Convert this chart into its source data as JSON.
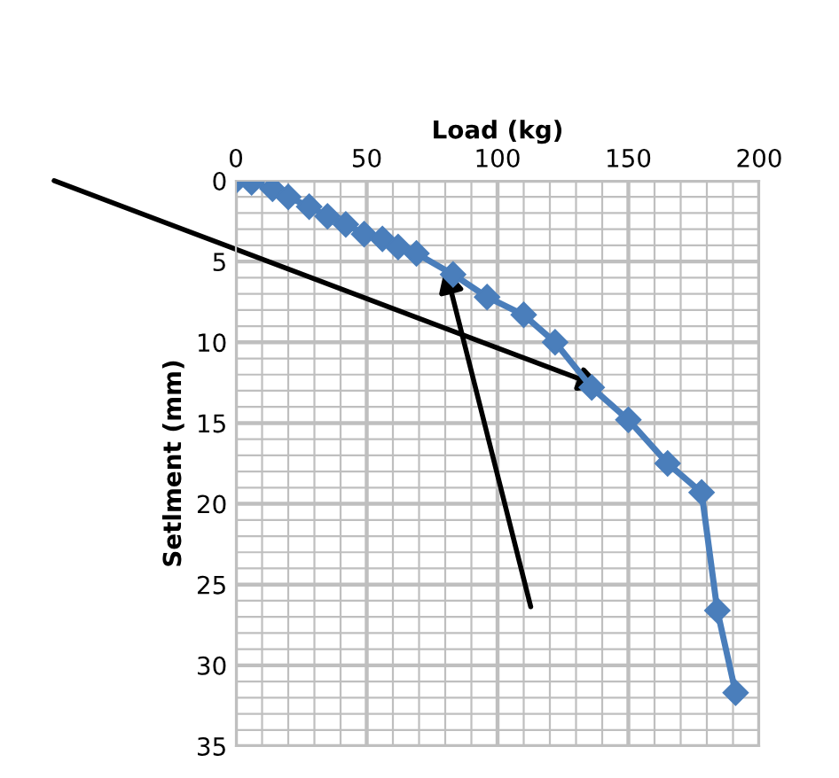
{
  "chart_data": {
    "type": "line",
    "xlabel": "Load (kg)",
    "ylabel": "Setlment (mm)",
    "x": [
      0,
      6,
      14,
      20,
      28,
      35,
      42,
      49,
      56,
      62,
      69,
      83,
      96,
      110,
      122,
      136,
      150,
      165,
      178,
      184,
      191
    ],
    "series": [
      {
        "color": "#4a7ebb",
        "values": [
          0,
          0.1,
          0.5,
          1.0,
          1.6,
          2.2,
          2.7,
          3.3,
          3.6,
          4.1,
          4.5,
          5.8,
          7.2,
          8.3,
          10.0,
          12.8,
          14.8,
          17.5,
          19.3,
          26.6,
          31.7
        ]
      }
    ],
    "xlim": [
      0,
      200
    ],
    "xticks": [
      0,
      50,
      100,
      150,
      200
    ],
    "ylim": [
      35,
      0
    ],
    "yticks": [
      0,
      5,
      10,
      15,
      20,
      25,
      30,
      35
    ],
    "grid": true,
    "marker": "diamond",
    "line_style": "solid"
  }
}
